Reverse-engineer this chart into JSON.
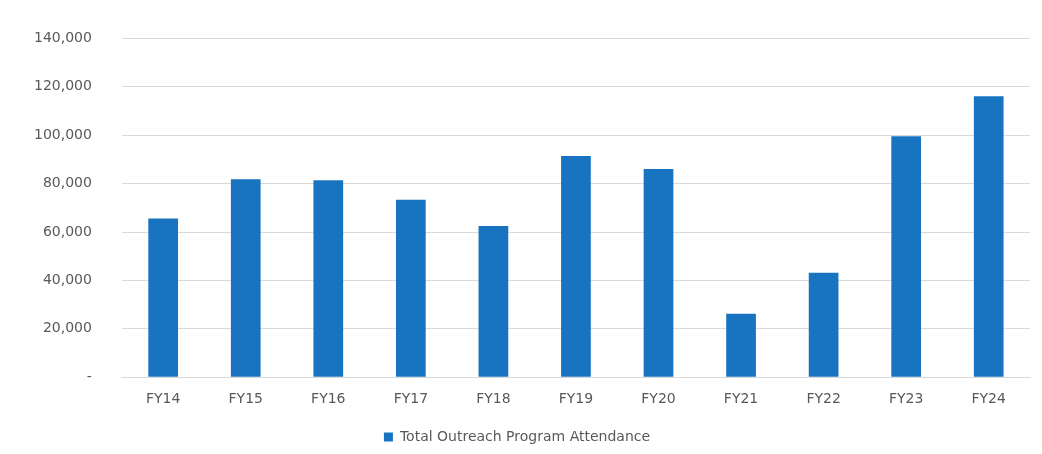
{
  "chart_data": {
    "type": "bar",
    "categories": [
      "FY14",
      "FY15",
      "FY16",
      "FY17",
      "FY18",
      "FY19",
      "FY20",
      "FY21",
      "FY22",
      "FY23",
      "FY24"
    ],
    "series": [
      {
        "name": "Total Outreach Program Attendance",
        "color": "#1874c1",
        "values": [
          65600,
          81800,
          81400,
          73300,
          62500,
          91400,
          86000,
          26200,
          43200,
          99600,
          116100
        ]
      }
    ],
    "ylim": [
      0,
      140000
    ],
    "yticks": [
      {
        "value": 0,
        "label": "-"
      },
      {
        "value": 20000,
        "label": "20,000"
      },
      {
        "value": 40000,
        "label": "40,000"
      },
      {
        "value": 60000,
        "label": "60,000"
      },
      {
        "value": 80000,
        "label": "80,000"
      },
      {
        "value": 100000,
        "label": "100,000"
      },
      {
        "value": 120000,
        "label": "120,000"
      },
      {
        "value": 140000,
        "label": "140,000"
      }
    ],
    "grid": "y",
    "legend": "bottom"
  }
}
